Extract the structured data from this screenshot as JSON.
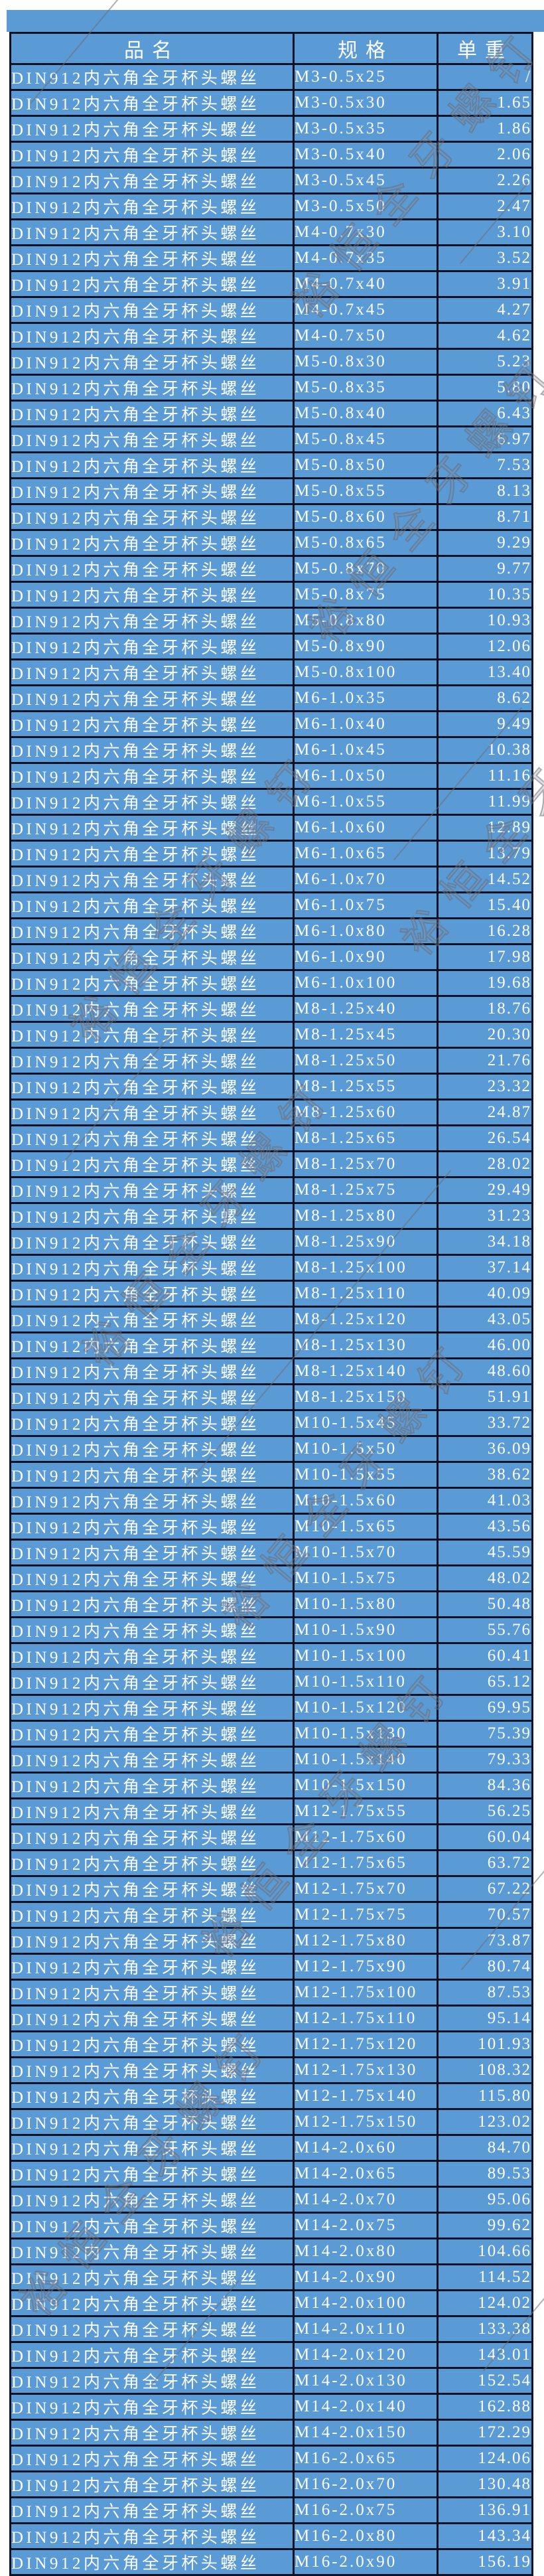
{
  "colors": {
    "cell_blue": "#5b9bd5",
    "border_dark": "#0e1222",
    "cell_text": "#fdfdfd",
    "watermark_gray": "#6a6a73"
  },
  "watermark": {
    "text": "裕恒全牙螺钉"
  },
  "table": {
    "headers": [
      "品名",
      "规格",
      "单重"
    ],
    "product_name": "DIN912内六角全牙杯头螺丝",
    "rows": [
      {
        "spec": "M3-0.5x25",
        "weight": "/"
      },
      {
        "spec": "M3-0.5x30",
        "weight": "1.65"
      },
      {
        "spec": "M3-0.5x35",
        "weight": "1.86"
      },
      {
        "spec": "M3-0.5x40",
        "weight": "2.06"
      },
      {
        "spec": "M3-0.5x45",
        "weight": "2.26"
      },
      {
        "spec": "M3-0.5x50",
        "weight": "2.47"
      },
      {
        "spec": "M4-0.7x30",
        "weight": "3.10"
      },
      {
        "spec": "M4-0.7x35",
        "weight": "3.52"
      },
      {
        "spec": "M4-0.7x40",
        "weight": "3.91"
      },
      {
        "spec": "M4-0.7x45",
        "weight": "4.27"
      },
      {
        "spec": "M4-0.7x50",
        "weight": "4.62"
      },
      {
        "spec": "M5-0.8x30",
        "weight": "5.23"
      },
      {
        "spec": "M5-0.8x35",
        "weight": "5.80"
      },
      {
        "spec": "M5-0.8x40",
        "weight": "6.43"
      },
      {
        "spec": "M5-0.8x45",
        "weight": "6.97"
      },
      {
        "spec": "M5-0.8x50",
        "weight": "7.53"
      },
      {
        "spec": "M5-0.8x55",
        "weight": "8.13"
      },
      {
        "spec": "M5-0.8x60",
        "weight": "8.71"
      },
      {
        "spec": "M5-0.8x65",
        "weight": "9.29"
      },
      {
        "spec": "M5-0.8x70",
        "weight": "9.77"
      },
      {
        "spec": "M5-0.8x75",
        "weight": "10.35"
      },
      {
        "spec": "M5-0.8x80",
        "weight": "10.93"
      },
      {
        "spec": "M5-0.8x90",
        "weight": "12.06"
      },
      {
        "spec": "M5-0.8x100",
        "weight": "13.40"
      },
      {
        "spec": "M6-1.0x35",
        "weight": "8.62"
      },
      {
        "spec": "M6-1.0x40",
        "weight": "9.49"
      },
      {
        "spec": "M6-1.0x45",
        "weight": "10.38"
      },
      {
        "spec": "M6-1.0x50",
        "weight": "11.16"
      },
      {
        "spec": "M6-1.0x55",
        "weight": "11.99"
      },
      {
        "spec": "M6-1.0x60",
        "weight": "12.89"
      },
      {
        "spec": "M6-1.0x65",
        "weight": "13.79"
      },
      {
        "spec": "M6-1.0x70",
        "weight": "14.52"
      },
      {
        "spec": "M6-1.0x75",
        "weight": "15.40"
      },
      {
        "spec": "M6-1.0x80",
        "weight": "16.28"
      },
      {
        "spec": "M6-1.0x90",
        "weight": "17.98"
      },
      {
        "spec": "M6-1.0x100",
        "weight": "19.68"
      },
      {
        "spec": "M8-1.25x40",
        "weight": "18.76"
      },
      {
        "spec": "M8-1.25x45",
        "weight": "20.30"
      },
      {
        "spec": "M8-1.25x50",
        "weight": "21.76"
      },
      {
        "spec": "M8-1.25x55",
        "weight": "23.32"
      },
      {
        "spec": "M8-1.25x60",
        "weight": "24.87"
      },
      {
        "spec": "M8-1.25x65",
        "weight": "26.54"
      },
      {
        "spec": "M8-1.25x70",
        "weight": "28.02"
      },
      {
        "spec": "M8-1.25x75",
        "weight": "29.49"
      },
      {
        "spec": "M8-1.25x80",
        "weight": "31.23"
      },
      {
        "spec": "M8-1.25x90",
        "weight": "34.18"
      },
      {
        "spec": "M8-1.25x100",
        "weight": "37.14"
      },
      {
        "spec": "M8-1.25x110",
        "weight": "40.09"
      },
      {
        "spec": "M8-1.25x120",
        "weight": "43.05"
      },
      {
        "spec": "M8-1.25x130",
        "weight": "46.00"
      },
      {
        "spec": "M8-1.25x140",
        "weight": "48.60"
      },
      {
        "spec": "M8-1.25x150",
        "weight": "51.91"
      },
      {
        "spec": "M10-1.5x45",
        "weight": "33.72"
      },
      {
        "spec": "M10-1.5x50",
        "weight": "36.09"
      },
      {
        "spec": "M10-1.5x55",
        "weight": "38.62"
      },
      {
        "spec": "M10-1.5x60",
        "weight": "41.03"
      },
      {
        "spec": "M10-1.5x65",
        "weight": "43.56"
      },
      {
        "spec": "M10-1.5x70",
        "weight": "45.59"
      },
      {
        "spec": "M10-1.5x75",
        "weight": "48.02"
      },
      {
        "spec": "M10-1.5x80",
        "weight": "50.48"
      },
      {
        "spec": "M10-1.5x90",
        "weight": "55.76"
      },
      {
        "spec": "M10-1.5x100",
        "weight": "60.41"
      },
      {
        "spec": "M10-1.5x110",
        "weight": "65.12"
      },
      {
        "spec": "M10-1.5x120",
        "weight": "69.95"
      },
      {
        "spec": "M10-1.5x130",
        "weight": "75.39"
      },
      {
        "spec": "M10-1.5x140",
        "weight": "79.33"
      },
      {
        "spec": "M10-1.5x150",
        "weight": "84.36"
      },
      {
        "spec": "M12-1.75x55",
        "weight": "56.25"
      },
      {
        "spec": "M12-1.75x60",
        "weight": "60.04"
      },
      {
        "spec": "M12-1.75x65",
        "weight": "63.72"
      },
      {
        "spec": "M12-1.75x70",
        "weight": "67.22"
      },
      {
        "spec": "M12-1.75x75",
        "weight": "70.57"
      },
      {
        "spec": "M12-1.75x80",
        "weight": "73.87"
      },
      {
        "spec": "M12-1.75x90",
        "weight": "80.74"
      },
      {
        "spec": "M12-1.75x100",
        "weight": "87.53"
      },
      {
        "spec": "M12-1.75x110",
        "weight": "95.14"
      },
      {
        "spec": "M12-1.75x120",
        "weight": "101.93"
      },
      {
        "spec": "M12-1.75x130",
        "weight": "108.32"
      },
      {
        "spec": "M12-1.75x140",
        "weight": "115.80"
      },
      {
        "spec": "M12-1.75x150",
        "weight": "123.02"
      },
      {
        "spec": "M14-2.0x60",
        "weight": "84.70"
      },
      {
        "spec": "M14-2.0x65",
        "weight": "89.53"
      },
      {
        "spec": "M14-2.0x70",
        "weight": "95.06"
      },
      {
        "spec": "M14-2.0x75",
        "weight": "99.62"
      },
      {
        "spec": "M14-2.0x80",
        "weight": "104.66"
      },
      {
        "spec": "M14-2.0x90",
        "weight": "114.52"
      },
      {
        "spec": "M14-2.0x100",
        "weight": "124.02"
      },
      {
        "spec": "M14-2.0x110",
        "weight": "133.38"
      },
      {
        "spec": "M14-2.0x120",
        "weight": "143.01"
      },
      {
        "spec": "M14-2.0x130",
        "weight": "152.54"
      },
      {
        "spec": "M14-2.0x140",
        "weight": "162.88"
      },
      {
        "spec": "M14-2.0x150",
        "weight": "172.29"
      },
      {
        "spec": "M16-2.0x65",
        "weight": "124.06"
      },
      {
        "spec": "M16-2.0x70",
        "weight": "130.48"
      },
      {
        "spec": "M16-2.0x75",
        "weight": "136.91"
      },
      {
        "spec": "M16-2.0x80",
        "weight": "143.34"
      },
      {
        "spec": "M16-2.0x90",
        "weight": "156.19"
      }
    ]
  }
}
